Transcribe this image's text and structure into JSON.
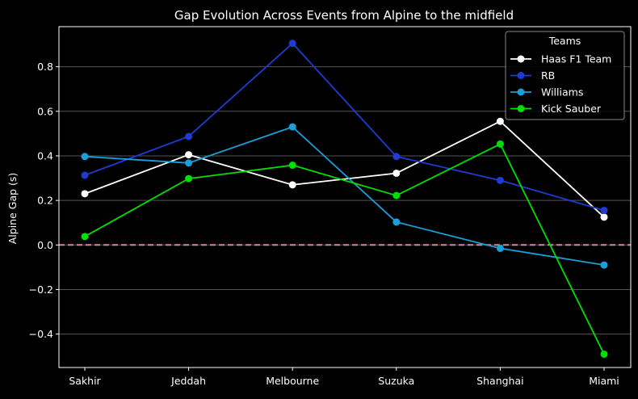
{
  "chart_data": {
    "type": "line",
    "title": "Gap Evolution Across Events from Alpine to the midfield",
    "xlabel": "",
    "ylabel": "Alpine Gap (s)",
    "categories": [
      "Sakhir",
      "Jeddah",
      "Melbourne",
      "Suzuka",
      "Shanghai",
      "Miami"
    ],
    "ylim": [
      -0.55,
      0.98
    ],
    "yticks": [
      -0.4,
      -0.2,
      0.0,
      0.2,
      0.4,
      0.6,
      0.8
    ],
    "ytick_labels": [
      "−0.4",
      "−0.2",
      "0.0",
      "0.2",
      "0.4",
      "0.6",
      "0.8"
    ],
    "grid": "horizontal",
    "reference_line": {
      "y": 0.0,
      "style": "dashed",
      "color": "#e0829b"
    },
    "legend": {
      "title": "Teams",
      "placement": "top-right"
    },
    "series": [
      {
        "name": "Haas F1 Team",
        "color": "#ffffff",
        "values": [
          0.23,
          0.405,
          0.27,
          0.322,
          0.555,
          0.125
        ]
      },
      {
        "name": "RB",
        "color": "#1f3bd4",
        "values": [
          0.313,
          0.487,
          0.905,
          0.397,
          0.29,
          0.155
        ]
      },
      {
        "name": "Williams",
        "color": "#1a9fd9",
        "values": [
          0.397,
          0.368,
          0.53,
          0.103,
          -0.015,
          -0.09
        ]
      },
      {
        "name": "Kick Sauber",
        "color": "#00e000",
        "values": [
          0.038,
          0.298,
          0.358,
          0.222,
          0.453,
          -0.49
        ]
      }
    ]
  }
}
